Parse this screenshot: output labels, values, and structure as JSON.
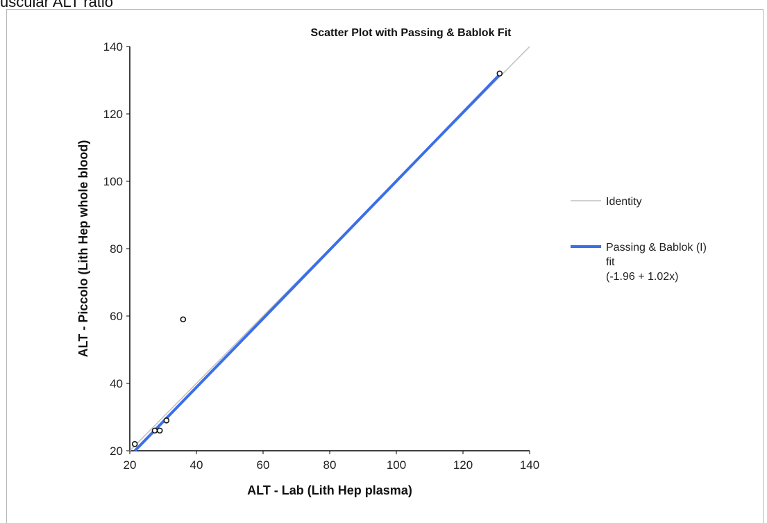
{
  "page": {
    "top_caption": "uscular ALT ratio"
  },
  "chart_data": {
    "type": "scatter",
    "title": "Scatter Plot with Passing & Bablok Fit",
    "xlabel": "ALT - Lab (Lith Hep plasma)",
    "ylabel": "ALT - Piccolo (Lith Hep whole blood)",
    "xlim": [
      20,
      140
    ],
    "ylim": [
      20,
      140
    ],
    "xticks": [
      20,
      40,
      60,
      80,
      100,
      120,
      140
    ],
    "yticks": [
      20,
      40,
      60,
      80,
      100,
      120,
      140
    ],
    "grid": false,
    "legend_position": "right",
    "points": {
      "x": [
        21.5,
        27.5,
        29,
        31,
        36,
        131
      ],
      "y": [
        22,
        26,
        26,
        29,
        59,
        132
      ]
    },
    "series": [
      {
        "name": "Identity",
        "kind": "line",
        "color": "#c0c0c0",
        "x": [
          20,
          140
        ],
        "y": [
          20,
          140
        ]
      },
      {
        "name": "Passing & Bablok (I) fit (-1.96 + 1.02x)",
        "kind": "line",
        "color": "#3a6fe8",
        "x": [
          21.5,
          131
        ],
        "y": [
          19.97,
          131.66
        ]
      }
    ],
    "legend": [
      {
        "lines": [
          "Identity"
        ],
        "color": "#c0c0c0"
      },
      {
        "lines": [
          "Passing & Bablok (I)",
          "fit",
          "(-1.96 + 1.02x)"
        ],
        "color": "#3a6fe8"
      }
    ]
  }
}
